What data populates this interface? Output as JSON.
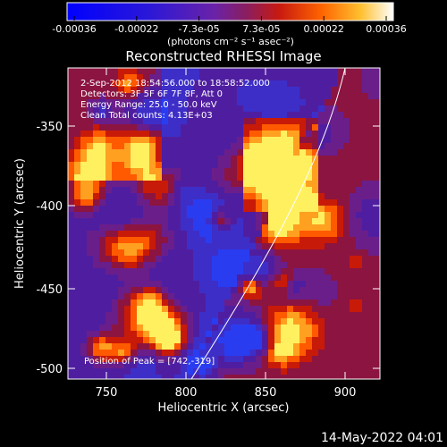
{
  "colorbar": {
    "tick_labels": [
      "-0.00036",
      "-0.00022",
      "-7.3e-05",
      "7.3e-05",
      "0.00022",
      "0.00036"
    ],
    "unit_label": "(photons cm⁻² s⁻¹ asec⁻²)"
  },
  "plot": {
    "title": "Reconstructed RHESSI Image",
    "time_range": "2-Sep-2012 18:54:56.000 to 18:58:52.000",
    "detectors": "Detectors: 3F 5F 6F 7F 8F, Att 0",
    "energy_range": "Energy Range: 25.0 - 50.0 keV",
    "method_counts": "Clean     Total counts: 4.13E+03",
    "peak": "Position of Peak = [742,-319]",
    "xlabel": "Heliocentric X (arcsec)",
    "ylabel": "Heliocentric Y (arcsec)",
    "x_ticks": [
      "750",
      "800",
      "850",
      "900"
    ],
    "y_ticks": [
      "-350",
      "-400",
      "-450",
      "-500"
    ]
  },
  "footer": {
    "timestamp": "14-May-2022 04:01"
  },
  "colors": {
    "background": "#000000",
    "text": "#ffffff",
    "limb": "#ffffff"
  }
}
